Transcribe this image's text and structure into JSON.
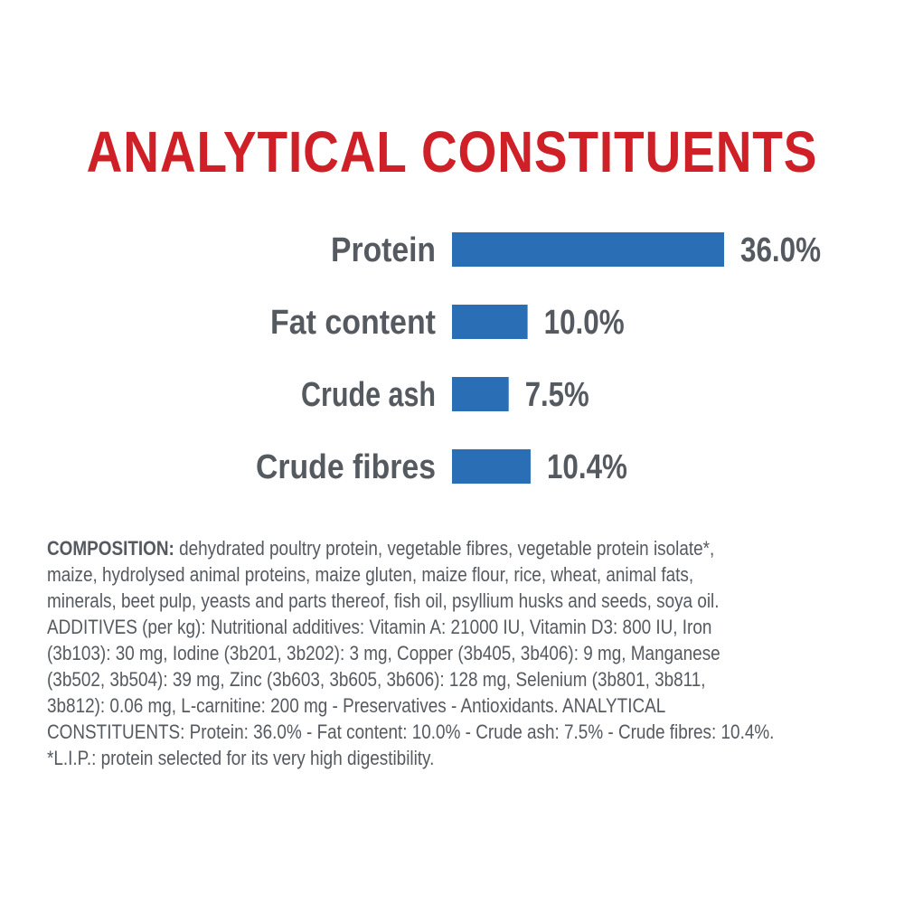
{
  "colors": {
    "title": "#cf2027",
    "bar": "#2a6fb5",
    "label": "#555a60",
    "background": "#ffffff"
  },
  "chart_data": {
    "type": "bar",
    "orientation": "horizontal",
    "title": "ANALYTICAL CONSTITUENTS",
    "categories": [
      "Protein",
      "Fat content",
      "Crude ash",
      "Crude fibres"
    ],
    "values": [
      36.0,
      10.0,
      7.5,
      10.4
    ],
    "value_labels": [
      "36.0%",
      "10.0%",
      "7.5%",
      "10.4%"
    ],
    "unit": "%",
    "xlim": [
      0,
      36
    ],
    "grid": false,
    "legend": "none"
  },
  "composition": {
    "lead": "COMPOSITION:",
    "lines": [
      " dehydrated poultry protein, vegetable fibres, vegetable protein isolate*,",
      "maize, hydrolysed animal proteins, maize gluten, maize flour, rice, wheat, animal fats,",
      "minerals, beet pulp, yeasts and parts thereof, fish oil, psyllium husks and seeds, soya oil.",
      "ADDITIVES (per kg): Nutritional additives: Vitamin A: 21000 IU, Vitamin D3: 800 IU, Iron",
      "(3b103): 30 mg, Iodine (3b201, 3b202): 3 mg, Copper (3b405, 3b406): 9 mg, Manganese",
      "(3b502, 3b504): 39 mg, Zinc (3b603, 3b605, 3b606): 128 mg, Selenium (3b801, 3b811,",
      "3b812): 0.06 mg, L-carnitine: 200 mg - Preservatives - Antioxidants. ANALYTICAL",
      "CONSTITUENTS: Protein: 36.0% - Fat content: 10.0% - Crude ash: 7.5% - Crude fibres: 10.4%.",
      "*L.I.P.: protein selected for its very high digestibility."
    ]
  }
}
